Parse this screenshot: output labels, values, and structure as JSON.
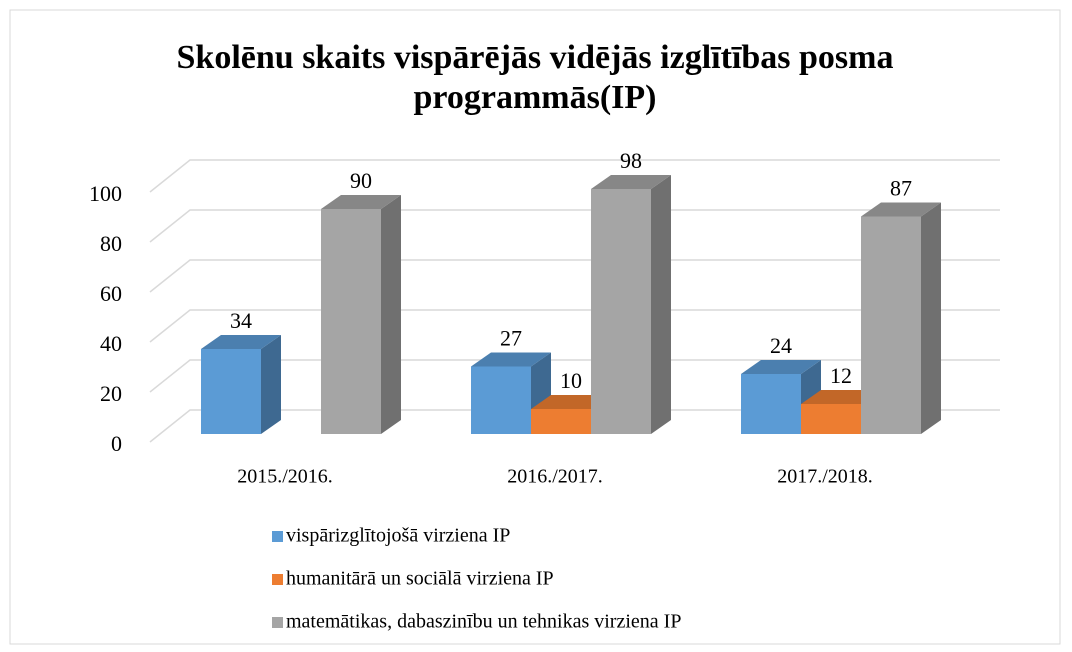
{
  "chart_data": {
    "type": "bar3d",
    "title": "Skolēnu skaits vispārējās vidējās izglītības posma programmās(IP)",
    "categories": [
      "2015./2016.",
      "2016./2017.",
      "2017./2018."
    ],
    "series": [
      {
        "name": "vispārizglītojošā virziena IP",
        "color": "#5b9bd5",
        "values": [
          34,
          27,
          24
        ]
      },
      {
        "name": "humanitārā un sociālā virziena IP",
        "color": "#ed7d31",
        "values": [
          null,
          10,
          12
        ]
      },
      {
        "name": "matemātikas, dabaszinību un tehnikas virziena IP",
        "color": "#a5a5a5",
        "values": [
          90,
          98,
          87
        ]
      }
    ],
    "ylim": [
      0,
      100
    ],
    "yticks": [
      0,
      20,
      40,
      60,
      80,
      100
    ],
    "grid": true,
    "legend": "bottom"
  }
}
